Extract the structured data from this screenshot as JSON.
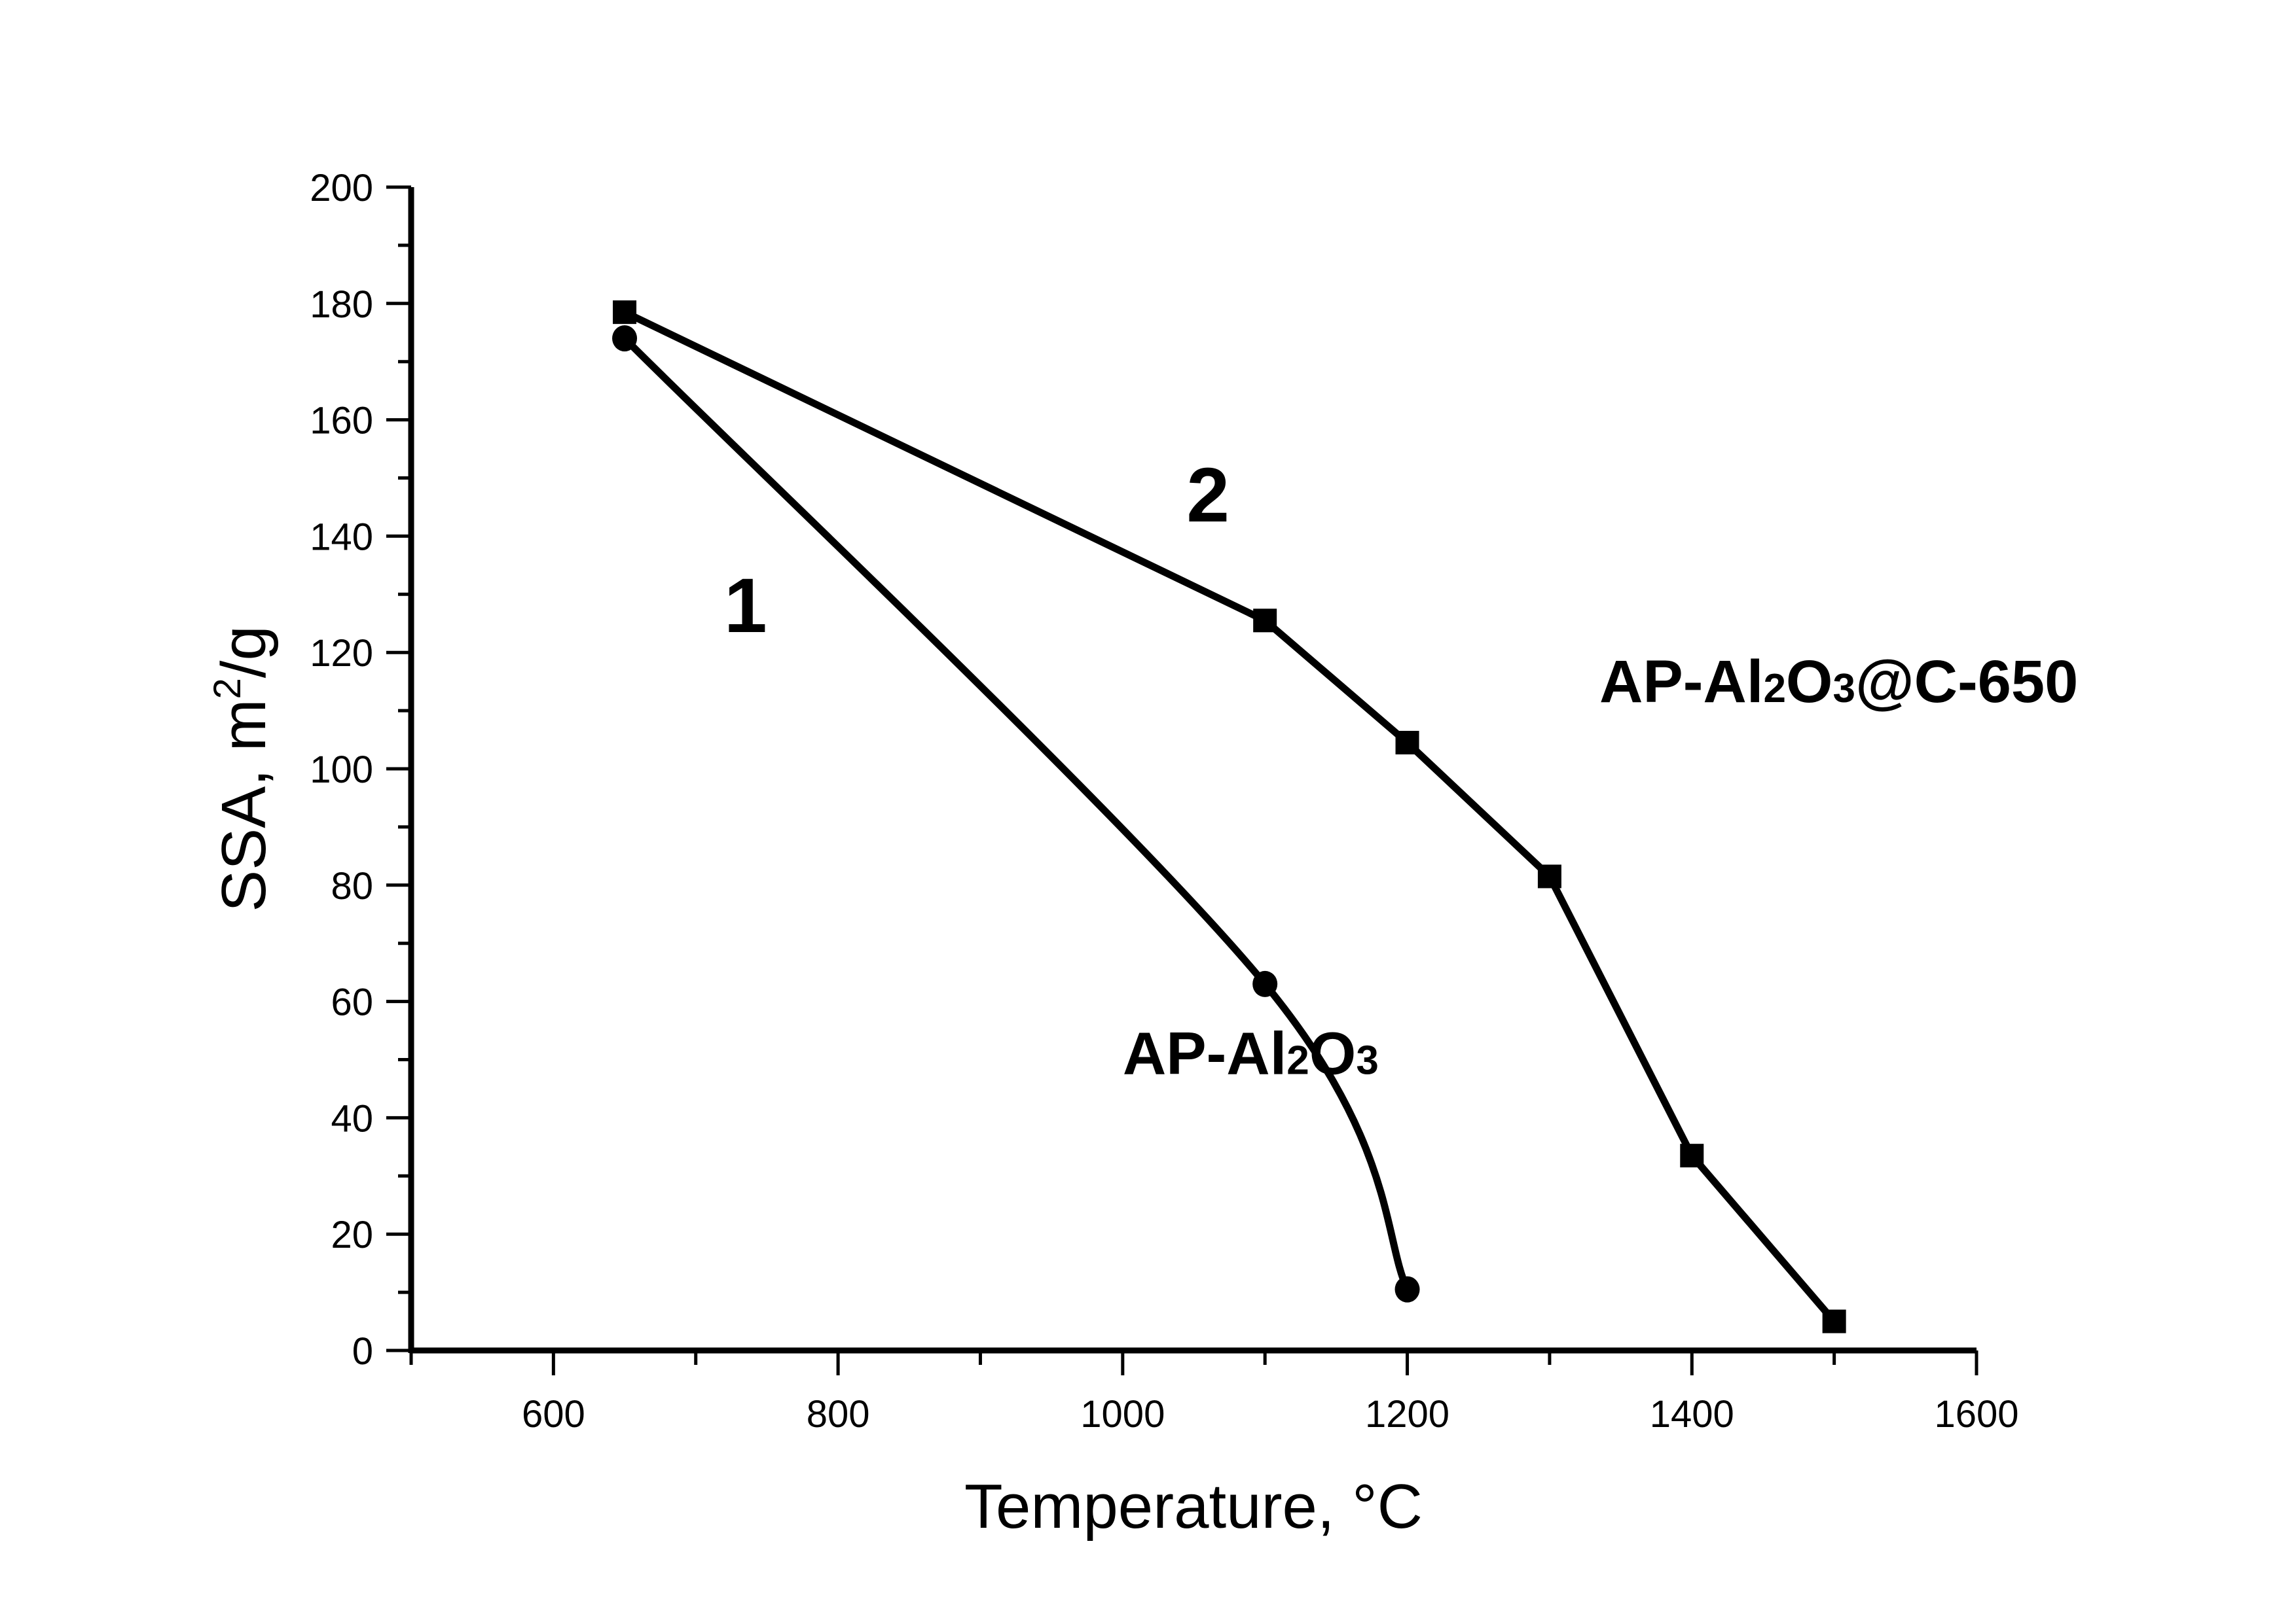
{
  "chart_data": {
    "type": "line",
    "title": "",
    "xlabel": "Temperature, °C",
    "ylabel": "SSA, m²/g",
    "ylabel_parts": {
      "main": "SSA, m",
      "sup": "2",
      "tail": "/g"
    },
    "xlim": [
      500,
      1600
    ],
    "ylim": [
      0,
      200
    ],
    "x_ticks": [
      600,
      800,
      1000,
      1200,
      1400,
      1600
    ],
    "x_minor_ticks": [
      500,
      700,
      900,
      1100,
      1300,
      1500
    ],
    "y_ticks": [
      0,
      20,
      40,
      60,
      80,
      100,
      120,
      140,
      160,
      180,
      200
    ],
    "y_minor_ticks": [
      10,
      30,
      50,
      70,
      90,
      110,
      130,
      150,
      170,
      190
    ],
    "grid": false,
    "legend": "none",
    "series": [
      {
        "name": "AP-Al2O3",
        "curve_number": "1",
        "marker": "circle",
        "color": "#000000",
        "smooth": true,
        "x": [
          650,
          1100,
          1200
        ],
        "values": [
          174,
          63,
          10.5
        ]
      },
      {
        "name": "AP-Al2O3@C-650",
        "curve_number": "2",
        "marker": "square",
        "color": "#000000",
        "smooth": false,
        "x": [
          650,
          1100,
          1200,
          1300,
          1400,
          1500
        ],
        "values": [
          178.5,
          125.5,
          104.5,
          81.5,
          33.5,
          5
        ]
      }
    ],
    "annotations": [
      {
        "text": "1",
        "x": 735,
        "y": 128
      },
      {
        "text": "2",
        "x": 1060,
        "y": 147
      },
      {
        "text": "AP-Al2O3",
        "parts": [
          "AP-Al",
          "2",
          "O",
          "3"
        ],
        "x": 1000,
        "y": 52
      },
      {
        "text": "AP-Al2O3@C-650",
        "parts": [
          "AP-Al",
          "2",
          "O",
          "3",
          "@C-650"
        ],
        "x": 1335,
        "y": 116
      }
    ]
  }
}
